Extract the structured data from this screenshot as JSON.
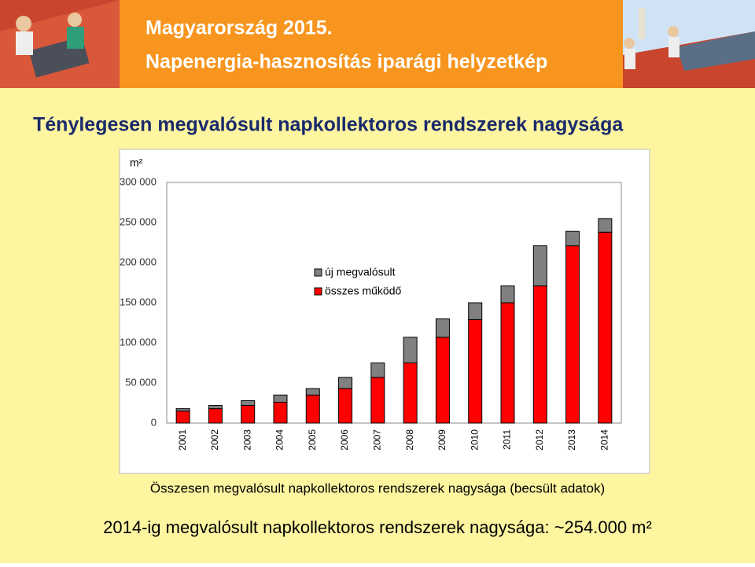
{
  "header": {
    "title": "Magyarország 2015.",
    "subtitle": "Napenergia-hasznosítás iparági helyzetkép"
  },
  "heading": "Ténylegesen megvalósult napkollektoros rendszerek nagysága",
  "chart_data": {
    "type": "stacked_bar",
    "y_label": "m²",
    "caption": "Összesen megvalósult napkollektoros rendszerek nagysága (becsült adatok)",
    "categories": [
      "2001",
      "2002",
      "2003",
      "2004",
      "2005",
      "2006",
      "2007",
      "2008",
      "2009",
      "2010",
      "2011",
      "2012",
      "2013",
      "2014"
    ],
    "series": [
      {
        "name": "összes működő",
        "color": "#ff0000",
        "values": [
          15000,
          18000,
          22000,
          26000,
          35000,
          43000,
          57000,
          75000,
          107000,
          129000,
          150000,
          171000,
          221000,
          238000
        ]
      },
      {
        "name": "új megvalósult",
        "color": "#808080",
        "values": [
          3000,
          4000,
          6000,
          9000,
          8000,
          14000,
          18000,
          32000,
          23000,
          21000,
          21000,
          50000,
          18000,
          17000
        ]
      }
    ],
    "ylim": [
      0,
      300000
    ],
    "yticks": [
      {
        "value": 0,
        "label": "0"
      },
      {
        "value": 50000,
        "label": "50 000"
      },
      {
        "value": 100000,
        "label": "100 000"
      },
      {
        "value": 150000,
        "label": "150 000"
      },
      {
        "value": 200000,
        "label": "200 000"
      },
      {
        "value": 250000,
        "label": "250 000"
      },
      {
        "value": 300000,
        "label": "300 000"
      }
    ]
  },
  "summary": "2014-ig megvalósult napkollektoros rendszerek nagysága: ~254.000 m²"
}
